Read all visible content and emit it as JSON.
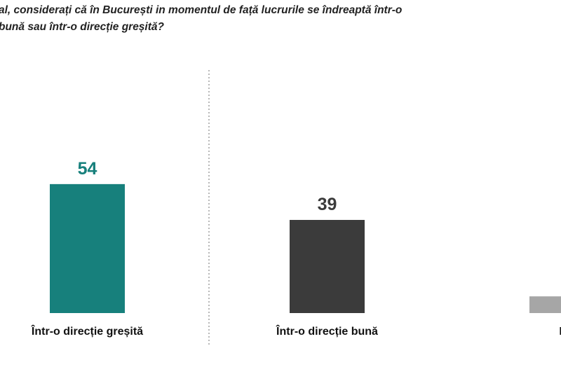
{
  "chart_data": {
    "type": "bar",
    "title_lines": [
      "al, considerați că în București in momentul de față lucrurile se îndreaptă într-o",
      "bună sau într-o direcție greșită?"
    ],
    "categories": [
      "Într-o direcție greșită",
      "Într-o direcție bună",
      "NS"
    ],
    "values": [
      54,
      39,
      7
    ],
    "colors": [
      "#17807c",
      "#3b3b3b",
      "#a6a6a6"
    ]
  }
}
